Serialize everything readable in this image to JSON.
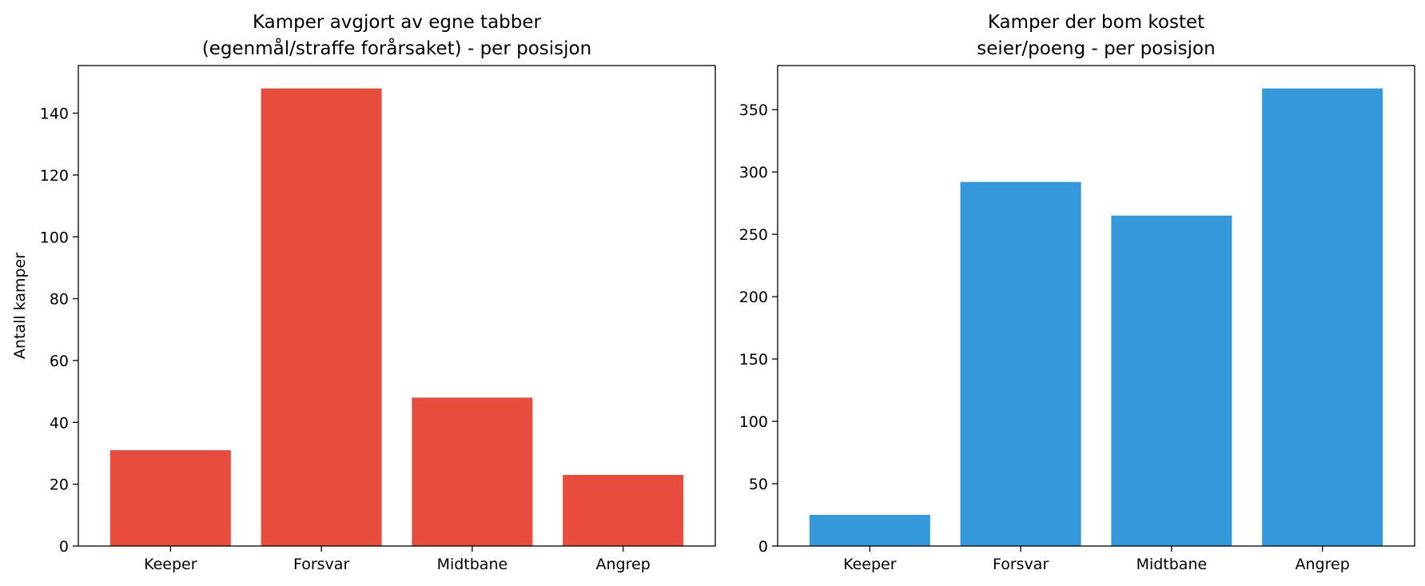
{
  "chart_data": [
    {
      "type": "bar",
      "title": [
        "Kamper avgjort av egne tabber",
        "(egenmål/straffe forårsaket) - per posisjon"
      ],
      "xlabel": "",
      "ylabel": "Antall kamper",
      "categories": [
        "Keeper",
        "Forsvar",
        "Midtbane",
        "Angrep"
      ],
      "values": [
        31,
        148,
        48,
        23
      ],
      "ylim": [
        0,
        155.4
      ],
      "yticks": [
        0,
        20,
        40,
        60,
        80,
        100,
        120,
        140
      ],
      "color": "#e74c3c",
      "grid": false,
      "legend": "none"
    },
    {
      "type": "bar",
      "title": [
        "Kamper der bom kostet",
        "seier/poeng - per posisjon"
      ],
      "xlabel": "",
      "ylabel": "",
      "categories": [
        "Keeper",
        "Forsvar",
        "Midtbane",
        "Angrep"
      ],
      "values": [
        25,
        292,
        265,
        367
      ],
      "ylim": [
        0,
        385.35
      ],
      "yticks": [
        0,
        50,
        100,
        150,
        200,
        250,
        300,
        350
      ],
      "color": "#3498db",
      "grid": false,
      "legend": "none"
    }
  ]
}
